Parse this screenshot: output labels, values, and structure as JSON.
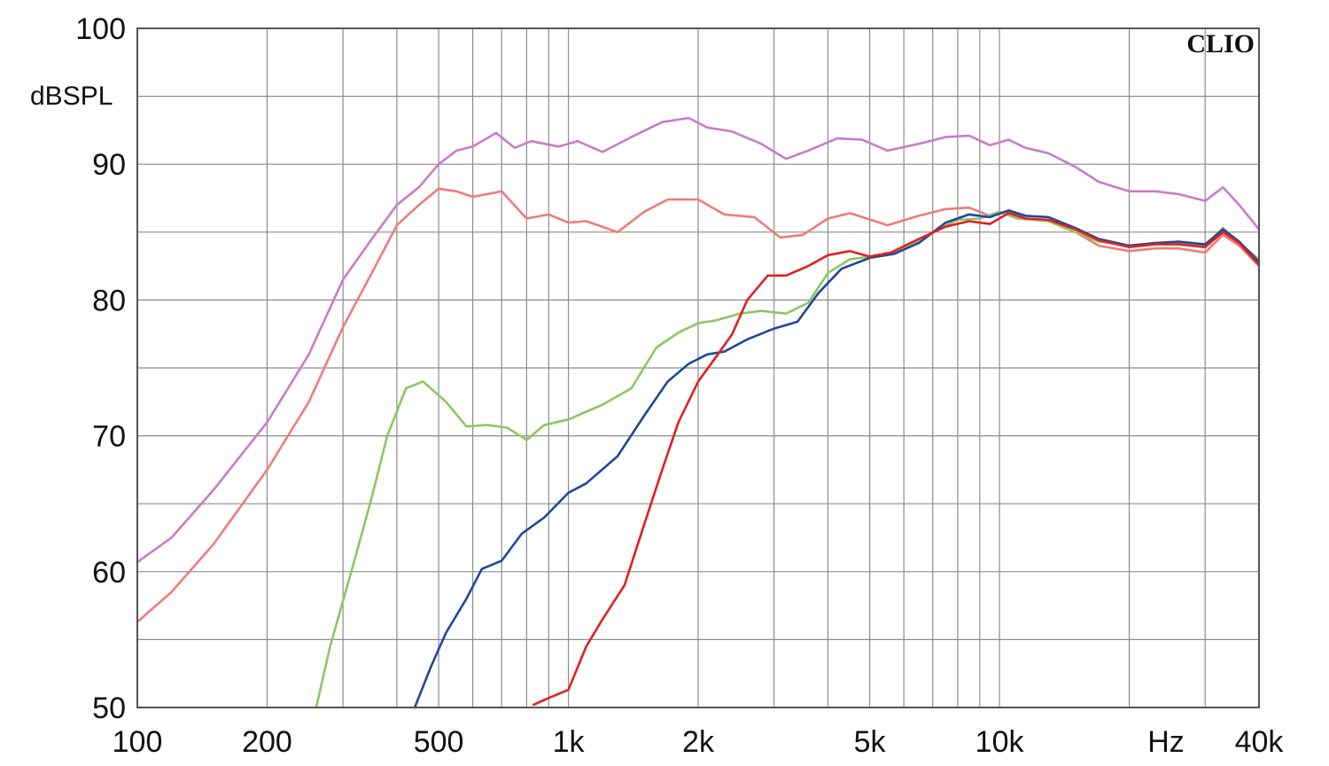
{
  "chart_data": {
    "type": "line",
    "brand": "CLIO",
    "ylabel": "dBSPL",
    "xunit_label": "Hz",
    "x_scale": "log",
    "xlim": [
      100,
      40000
    ],
    "ylim": [
      50,
      100
    ],
    "grid": true,
    "x_ticks": [
      {
        "value": 100,
        "label": "100"
      },
      {
        "value": 200,
        "label": "200"
      },
      {
        "value": 500,
        "label": "500"
      },
      {
        "value": 1000,
        "label": "1k"
      },
      {
        "value": 2000,
        "label": "2k"
      },
      {
        "value": 5000,
        "label": "5k"
      },
      {
        "value": 10000,
        "label": "10k"
      },
      {
        "value": 40000,
        "label": "40k"
      }
    ],
    "y_ticks": [
      {
        "value": 50,
        "label": "50"
      },
      {
        "value": 60,
        "label": "60"
      },
      {
        "value": 70,
        "label": "70"
      },
      {
        "value": 80,
        "label": "80"
      },
      {
        "value": 90,
        "label": "90"
      },
      {
        "value": 100,
        "label": "100"
      }
    ],
    "series": [
      {
        "color": "#c77dc7",
        "points": [
          [
            100,
            60.7
          ],
          [
            120,
            62.5
          ],
          [
            150,
            66
          ],
          [
            200,
            71
          ],
          [
            250,
            76
          ],
          [
            300,
            81.5
          ],
          [
            350,
            84.5
          ],
          [
            400,
            87
          ],
          [
            450,
            88.3
          ],
          [
            500,
            90
          ],
          [
            550,
            91
          ],
          [
            600,
            91.3
          ],
          [
            680,
            92.3
          ],
          [
            750,
            91.2
          ],
          [
            820,
            91.7
          ],
          [
            950,
            91.3
          ],
          [
            1050,
            91.7
          ],
          [
            1200,
            90.9
          ],
          [
            1400,
            92
          ],
          [
            1650,
            93.1
          ],
          [
            1900,
            93.4
          ],
          [
            2100,
            92.7
          ],
          [
            2400,
            92.4
          ],
          [
            2800,
            91.5
          ],
          [
            3200,
            90.4
          ],
          [
            3600,
            91
          ],
          [
            4200,
            91.9
          ],
          [
            4800,
            91.8
          ],
          [
            5500,
            91
          ],
          [
            6500,
            91.5
          ],
          [
            7500,
            92
          ],
          [
            8500,
            92.1
          ],
          [
            9500,
            91.4
          ],
          [
            10500,
            91.8
          ],
          [
            11500,
            91.2
          ],
          [
            13000,
            90.8
          ],
          [
            15000,
            89.8
          ],
          [
            17000,
            88.7
          ],
          [
            20000,
            88
          ],
          [
            23000,
            88
          ],
          [
            26000,
            87.8
          ],
          [
            30000,
            87.3
          ],
          [
            33000,
            88.3
          ],
          [
            36000,
            87
          ],
          [
            40000,
            85.2
          ]
        ]
      },
      {
        "color": "#ee7c78",
        "points": [
          [
            100,
            56.3
          ],
          [
            120,
            58.5
          ],
          [
            150,
            62
          ],
          [
            200,
            67.5
          ],
          [
            250,
            72.5
          ],
          [
            300,
            78
          ],
          [
            350,
            82
          ],
          [
            400,
            85.5
          ],
          [
            450,
            87
          ],
          [
            500,
            88.2
          ],
          [
            550,
            88
          ],
          [
            600,
            87.6
          ],
          [
            700,
            88
          ],
          [
            800,
            86
          ],
          [
            900,
            86.3
          ],
          [
            1000,
            85.7
          ],
          [
            1100,
            85.8
          ],
          [
            1300,
            85
          ],
          [
            1500,
            86.5
          ],
          [
            1700,
            87.4
          ],
          [
            2000,
            87.4
          ],
          [
            2300,
            86.3
          ],
          [
            2700,
            86.1
          ],
          [
            3100,
            84.6
          ],
          [
            3500,
            84.8
          ],
          [
            4000,
            86
          ],
          [
            4500,
            86.4
          ],
          [
            5500,
            85.5
          ],
          [
            6500,
            86.2
          ],
          [
            7500,
            86.7
          ],
          [
            8500,
            86.8
          ],
          [
            9500,
            86.2
          ],
          [
            10500,
            86.5
          ],
          [
            11500,
            86
          ],
          [
            13000,
            85.8
          ],
          [
            15000,
            85
          ],
          [
            17000,
            84
          ],
          [
            20000,
            83.6
          ],
          [
            23000,
            83.8
          ],
          [
            26000,
            83.8
          ],
          [
            30000,
            83.5
          ],
          [
            33000,
            84.8
          ],
          [
            36000,
            84
          ],
          [
            40000,
            82.5
          ]
        ]
      },
      {
        "color": "#8cc762",
        "points": [
          [
            260,
            50
          ],
          [
            280,
            54.5
          ],
          [
            320,
            61
          ],
          [
            350,
            65.5
          ],
          [
            380,
            70
          ],
          [
            420,
            73.5
          ],
          [
            460,
            74
          ],
          [
            520,
            72.5
          ],
          [
            580,
            70.7
          ],
          [
            650,
            70.8
          ],
          [
            720,
            70.6
          ],
          [
            800,
            69.7
          ],
          [
            880,
            70.8
          ],
          [
            1000,
            71.2
          ],
          [
            1200,
            72.3
          ],
          [
            1400,
            73.5
          ],
          [
            1600,
            76.5
          ],
          [
            1800,
            77.6
          ],
          [
            2000,
            78.3
          ],
          [
            2200,
            78.5
          ],
          [
            2500,
            79
          ],
          [
            2800,
            79.2
          ],
          [
            3200,
            79
          ],
          [
            3600,
            79.8
          ],
          [
            4000,
            82
          ],
          [
            4500,
            83
          ],
          [
            5000,
            83.2
          ],
          [
            5500,
            83.3
          ],
          [
            6200,
            84
          ],
          [
            7000,
            85
          ],
          [
            8000,
            85.9
          ],
          [
            9000,
            86
          ],
          [
            10000,
            86.5
          ],
          [
            11000,
            86
          ],
          [
            13000,
            85.8
          ],
          [
            15000,
            85
          ],
          [
            17000,
            84.3
          ],
          [
            20000,
            84
          ],
          [
            23000,
            84.2
          ],
          [
            26000,
            84.2
          ],
          [
            30000,
            84
          ],
          [
            33000,
            85.3
          ],
          [
            36000,
            84.2
          ],
          [
            40000,
            83
          ]
        ]
      },
      {
        "color": "#21479b",
        "points": [
          [
            440,
            50
          ],
          [
            480,
            53
          ],
          [
            520,
            55.5
          ],
          [
            580,
            58
          ],
          [
            630,
            60.2
          ],
          [
            700,
            60.8
          ],
          [
            780,
            62.8
          ],
          [
            880,
            64
          ],
          [
            1000,
            65.8
          ],
          [
            1100,
            66.5
          ],
          [
            1300,
            68.5
          ],
          [
            1500,
            71.5
          ],
          [
            1700,
            74
          ],
          [
            1900,
            75.3
          ],
          [
            2100,
            76
          ],
          [
            2300,
            76.2
          ],
          [
            2600,
            77.1
          ],
          [
            3000,
            77.9
          ],
          [
            3400,
            78.4
          ],
          [
            3800,
            80.5
          ],
          [
            4300,
            82.3
          ],
          [
            5000,
            83.1
          ],
          [
            5700,
            83.4
          ],
          [
            6500,
            84.2
          ],
          [
            7500,
            85.7
          ],
          [
            8500,
            86.3
          ],
          [
            9500,
            86.1
          ],
          [
            10500,
            86.6
          ],
          [
            11500,
            86.2
          ],
          [
            13000,
            86.1
          ],
          [
            15000,
            85.3
          ],
          [
            17000,
            84.5
          ],
          [
            20000,
            84
          ],
          [
            23000,
            84.2
          ],
          [
            26000,
            84.3
          ],
          [
            30000,
            84.1
          ],
          [
            33000,
            85.2
          ],
          [
            36000,
            84.3
          ],
          [
            40000,
            82.8
          ]
        ]
      },
      {
        "color": "#e12020",
        "points": [
          [
            830,
            50.2
          ],
          [
            900,
            50.7
          ],
          [
            1000,
            51.3
          ],
          [
            1100,
            54.5
          ],
          [
            1200,
            56.5
          ],
          [
            1350,
            59
          ],
          [
            1500,
            63.5
          ],
          [
            1650,
            67.5
          ],
          [
            1800,
            71
          ],
          [
            2000,
            74
          ],
          [
            2200,
            75.8
          ],
          [
            2400,
            77.5
          ],
          [
            2600,
            80
          ],
          [
            2900,
            81.8
          ],
          [
            3200,
            81.8
          ],
          [
            3600,
            82.5
          ],
          [
            4000,
            83.3
          ],
          [
            4500,
            83.6
          ],
          [
            5000,
            83.2
          ],
          [
            5600,
            83.5
          ],
          [
            6500,
            84.5
          ],
          [
            7500,
            85.4
          ],
          [
            8500,
            85.8
          ],
          [
            9500,
            85.6
          ],
          [
            10500,
            86.4
          ],
          [
            11500,
            86
          ],
          [
            13000,
            85.9
          ],
          [
            15000,
            85.2
          ],
          [
            17000,
            84.4
          ],
          [
            20000,
            83.9
          ],
          [
            23000,
            84.1
          ],
          [
            26000,
            84.1
          ],
          [
            30000,
            83.9
          ],
          [
            33000,
            85
          ],
          [
            36000,
            84.2
          ],
          [
            40000,
            82.6
          ]
        ]
      }
    ]
  }
}
